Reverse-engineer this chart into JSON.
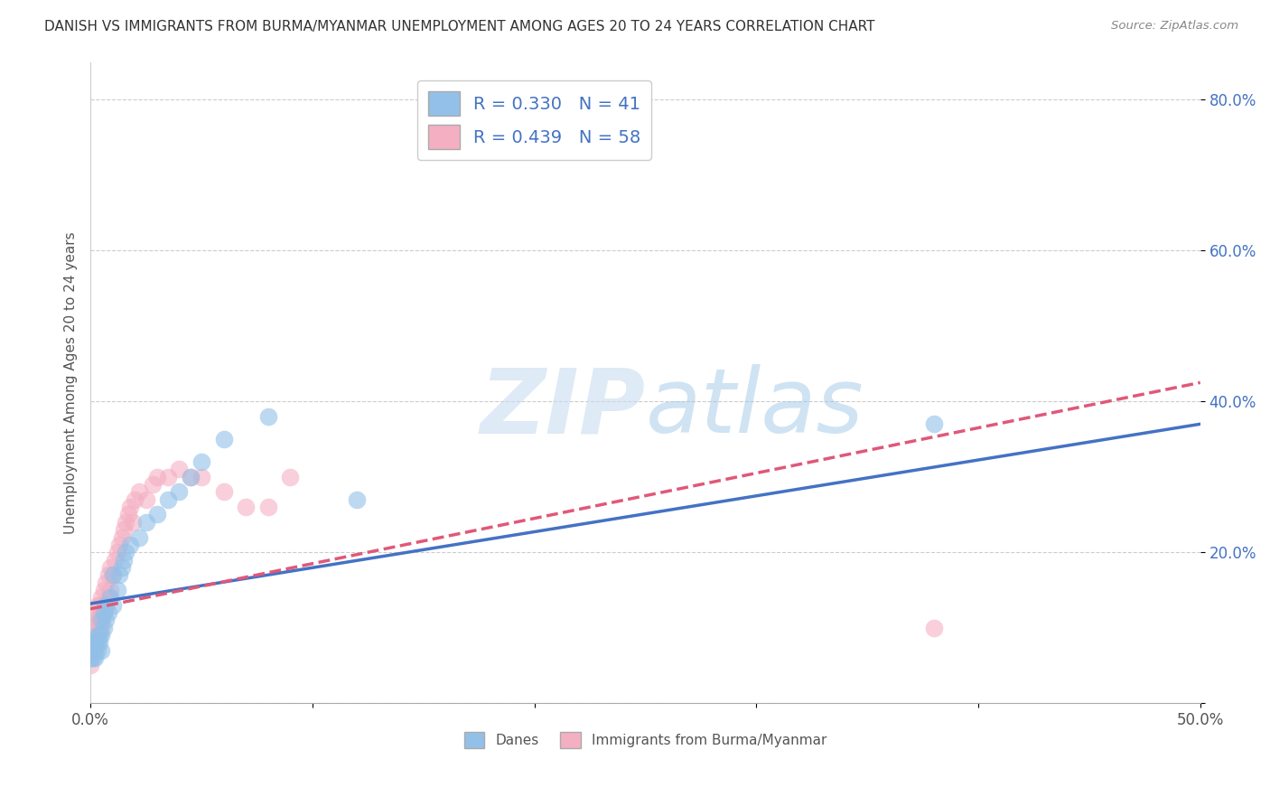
{
  "title": "DANISH VS IMMIGRANTS FROM BURMA/MYANMAR UNEMPLOYMENT AMONG AGES 20 TO 24 YEARS CORRELATION CHART",
  "source": "Source: ZipAtlas.com",
  "ylabel": "Unemployment Among Ages 20 to 24 years",
  "xlim": [
    0.0,
    0.5
  ],
  "ylim": [
    0.0,
    0.85
  ],
  "xticks": [
    0.0,
    0.5
  ],
  "yticks": [
    0.0,
    0.2,
    0.4,
    0.6,
    0.8
  ],
  "xticklabels": [
    "0.0%",
    "50.0%"
  ],
  "yticklabels": [
    "",
    "20.0%",
    "40.0%",
    "60.0%",
    "80.0%"
  ],
  "legend_labels": [
    "Danes",
    "Immigrants from Burma/Myanmar"
  ],
  "legend_r": [
    0.33,
    0.439
  ],
  "legend_n": [
    41,
    58
  ],
  "blue_color": "#92c0e8",
  "pink_color": "#f4afc2",
  "line_blue": "#4472c4",
  "line_pink": "#e05878",
  "watermark_zip": "ZIP",
  "watermark_atlas": "atlas",
  "danes_scatter_x": [
    0.0,
    0.0,
    0.0,
    0.001,
    0.001,
    0.002,
    0.002,
    0.002,
    0.003,
    0.003,
    0.003,
    0.004,
    0.004,
    0.005,
    0.005,
    0.005,
    0.006,
    0.006,
    0.007,
    0.007,
    0.008,
    0.009,
    0.01,
    0.01,
    0.012,
    0.013,
    0.014,
    0.015,
    0.016,
    0.018,
    0.022,
    0.025,
    0.03,
    0.035,
    0.04,
    0.045,
    0.05,
    0.06,
    0.08,
    0.12,
    0.38
  ],
  "danes_scatter_y": [
    0.06,
    0.07,
    0.08,
    0.06,
    0.07,
    0.06,
    0.07,
    0.08,
    0.07,
    0.08,
    0.09,
    0.08,
    0.09,
    0.07,
    0.09,
    0.11,
    0.1,
    0.12,
    0.11,
    0.13,
    0.12,
    0.14,
    0.13,
    0.17,
    0.15,
    0.17,
    0.18,
    0.19,
    0.2,
    0.21,
    0.22,
    0.24,
    0.25,
    0.27,
    0.28,
    0.3,
    0.32,
    0.35,
    0.38,
    0.27,
    0.37
  ],
  "immigrants_scatter_x": [
    0.0,
    0.0,
    0.0,
    0.0,
    0.0,
    0.0,
    0.0,
    0.0,
    0.001,
    0.001,
    0.001,
    0.002,
    0.002,
    0.002,
    0.003,
    0.003,
    0.003,
    0.003,
    0.004,
    0.004,
    0.004,
    0.005,
    0.005,
    0.005,
    0.005,
    0.006,
    0.006,
    0.006,
    0.007,
    0.007,
    0.008,
    0.008,
    0.009,
    0.009,
    0.01,
    0.011,
    0.012,
    0.013,
    0.014,
    0.015,
    0.016,
    0.017,
    0.018,
    0.019,
    0.02,
    0.022,
    0.025,
    0.028,
    0.03,
    0.035,
    0.04,
    0.045,
    0.05,
    0.06,
    0.07,
    0.08,
    0.09,
    0.38
  ],
  "immigrants_scatter_y": [
    0.05,
    0.06,
    0.07,
    0.07,
    0.08,
    0.09,
    0.1,
    0.11,
    0.07,
    0.08,
    0.1,
    0.08,
    0.09,
    0.11,
    0.09,
    0.1,
    0.11,
    0.13,
    0.1,
    0.11,
    0.13,
    0.1,
    0.11,
    0.12,
    0.14,
    0.12,
    0.13,
    0.15,
    0.13,
    0.16,
    0.14,
    0.17,
    0.15,
    0.18,
    0.17,
    0.19,
    0.2,
    0.21,
    0.22,
    0.23,
    0.24,
    0.25,
    0.26,
    0.24,
    0.27,
    0.28,
    0.27,
    0.29,
    0.3,
    0.3,
    0.31,
    0.3,
    0.3,
    0.28,
    0.26,
    0.26,
    0.3,
    0.1
  ],
  "blue_trend_x": [
    0.0,
    0.5
  ],
  "blue_trend_y": [
    0.132,
    0.37
  ],
  "pink_trend_x": [
    0.0,
    0.5
  ],
  "pink_trend_y": [
    0.125,
    0.425
  ],
  "title_fontsize": 11,
  "axis_label_fontsize": 11,
  "tick_fontsize": 12,
  "legend_fontsize": 14,
  "background_color": "#ffffff",
  "grid_color": "#cccccc",
  "legend_text_color": "#4472c4",
  "ytick_color": "#4472c4"
}
